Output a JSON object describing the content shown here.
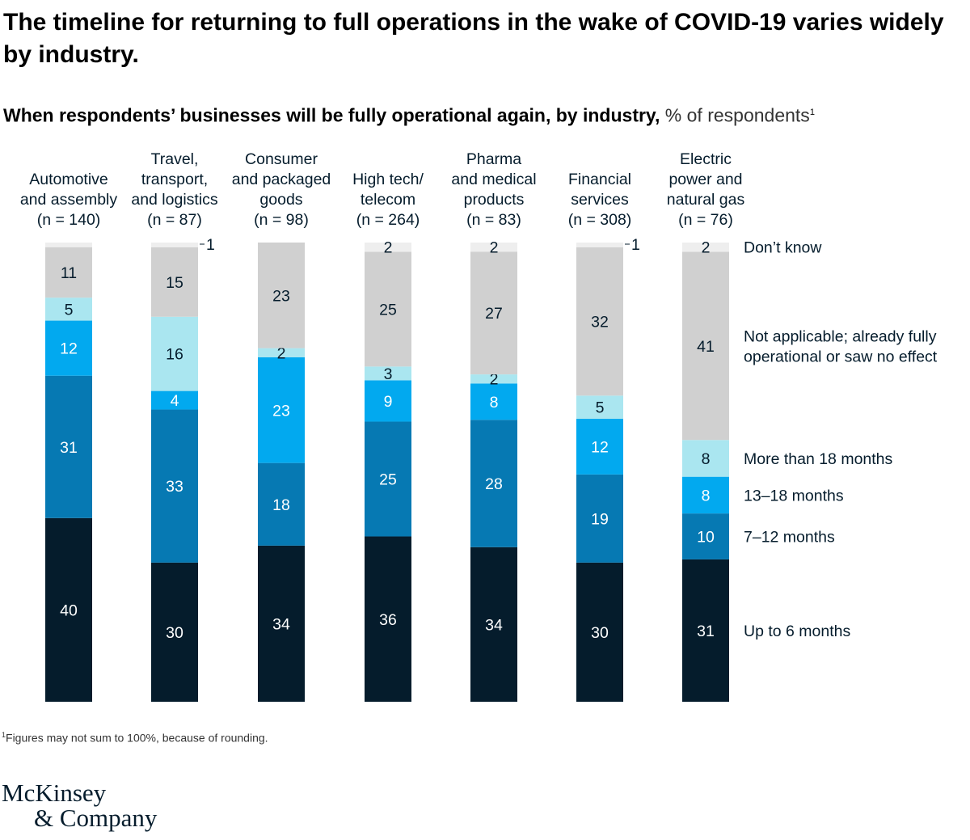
{
  "title": "The timeline for returning to full operations in the wake of COVID-19 varies widely by industry.",
  "subtitle": {
    "bold": "When respondents’ businesses will be fully operational again, by industry,",
    "light": "% of respondents",
    "sup": "1"
  },
  "footnote": {
    "sup": "1",
    "text": "Figures may not sum to 100%, because of rounding."
  },
  "logo": {
    "line1": "McKinsey",
    "line2": "& Company"
  },
  "colors": {
    "Up to 6 months": "#051c2c",
    "7–12 months": "#0679b3",
    "13–18 months": "#02a9ef",
    "More than 18 months": "#aae6f0",
    "Not applicable; already fully operational or saw no effect": "#d0d0d0",
    "Don't know": "#eeeeee"
  },
  "chart_data": {
    "type": "bar",
    "stacked": true,
    "orientation": "vertical",
    "categories": [
      [
        "Automotive",
        "and assembly",
        "(n = 140)"
      ],
      [
        "Travel,",
        "transport,",
        "and logistics",
        "(n = 87)"
      ],
      [
        "Consumer",
        "and packaged",
        "goods",
        "(n = 98)"
      ],
      [
        "High tech/",
        "telecom",
        "(n = 264)"
      ],
      [
        "Pharma",
        "and medical",
        "products",
        "(n = 83)"
      ],
      [
        "Financial",
        "services",
        "(n = 308)"
      ],
      [
        "Electric",
        "power and",
        "natural gas",
        "(n = 76)"
      ]
    ],
    "series": [
      {
        "name": "Up to 6 months",
        "label": [
          "Up to 6 months"
        ],
        "values": [
          40,
          30,
          34,
          36,
          34,
          30,
          31
        ]
      },
      {
        "name": "7–12 months",
        "label": [
          "7–12 months"
        ],
        "values": [
          31,
          33,
          18,
          25,
          28,
          19,
          10
        ]
      },
      {
        "name": "13–18 months",
        "label": [
          "13–18 months"
        ],
        "values": [
          12,
          4,
          23,
          9,
          8,
          12,
          8
        ]
      },
      {
        "name": "More than 18 months",
        "label": [
          "More than 18 months"
        ],
        "values": [
          5,
          16,
          2,
          3,
          2,
          5,
          8
        ]
      },
      {
        "name": "Not applicable; already fully operational or saw no effect",
        "label": [
          "Not applicable; already fully",
          "operational or saw no effect"
        ],
        "values": [
          11,
          15,
          23,
          25,
          27,
          32,
          41
        ]
      },
      {
        "name": "Don't know",
        "label": [
          "Don’t know"
        ],
        "values": [
          1,
          1,
          0,
          2,
          2,
          1,
          2
        ]
      }
    ],
    "data_labels": [
      [
        "40",
        "31",
        "12",
        "5",
        "11",
        ""
      ],
      [
        "30",
        "33",
        "4",
        "16",
        "15",
        "1"
      ],
      [
        "34",
        "18",
        "23",
        "2",
        "23",
        ""
      ],
      [
        "36",
        "25",
        "9",
        "3",
        "25",
        "2"
      ],
      [
        "34",
        "28",
        "8",
        "2",
        "27",
        "2"
      ],
      [
        "30",
        "19",
        "12",
        "5",
        "32",
        "1"
      ],
      [
        "31",
        "10",
        "8",
        "8",
        "41",
        "2"
      ]
    ],
    "legend_position": "right",
    "ylim": [
      0,
      100
    ],
    "grid": false
  }
}
